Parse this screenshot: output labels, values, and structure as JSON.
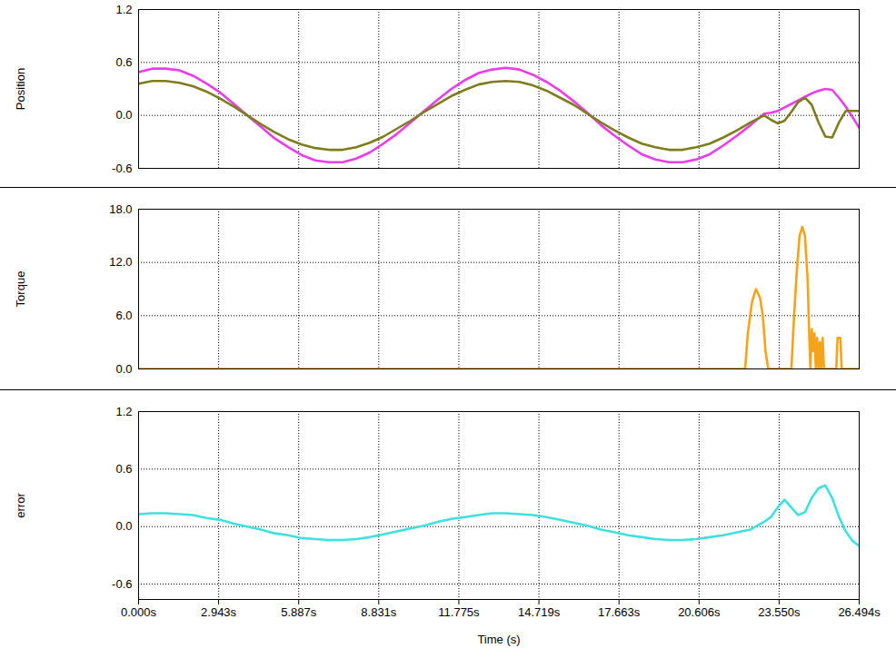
{
  "chart_data": [
    {
      "type": "line",
      "ylabel": "Position",
      "grid": true,
      "tick_labels": "y",
      "x": [
        0,
        0.5,
        1,
        1.5,
        2,
        2.5,
        3,
        3.5,
        4,
        4.5,
        5,
        5.5,
        6,
        6.5,
        7,
        7.5,
        8,
        8.5,
        9,
        9.5,
        10,
        10.5,
        11,
        11.5,
        12,
        12.5,
        13,
        13.5,
        14,
        14.5,
        15,
        15.5,
        16,
        16.5,
        17,
        17.5,
        18,
        18.5,
        19,
        19.5,
        20,
        20.5,
        21,
        21.5,
        22,
        22.5,
        23,
        23.25,
        23.5,
        23.75,
        24,
        24.25,
        24.5,
        24.75,
        25,
        25.25,
        25.5,
        25.75,
        26,
        26.25,
        26.494
      ],
      "series": [
        {
          "color": "#e83de8",
          "values": [
            0.49,
            0.53,
            0.53,
            0.51,
            0.45,
            0.36,
            0.26,
            0.13,
            0.0,
            -0.13,
            -0.26,
            -0.36,
            -0.45,
            -0.51,
            -0.53,
            -0.53,
            -0.49,
            -0.42,
            -0.32,
            -0.21,
            -0.08,
            0.05,
            0.18,
            0.3,
            0.4,
            0.48,
            0.52,
            0.54,
            0.52,
            0.46,
            0.38,
            0.28,
            0.16,
            0.03,
            -0.11,
            -0.23,
            -0.34,
            -0.44,
            -0.5,
            -0.53,
            -0.53,
            -0.5,
            -0.44,
            -0.34,
            -0.23,
            -0.11,
            0.02,
            0.03,
            0.05,
            0.09,
            0.13,
            0.17,
            0.21,
            0.25,
            0.28,
            0.3,
            0.29,
            0.2,
            0.1,
            -0.02,
            -0.14
          ]
        },
        {
          "color": "#7d7d1e",
          "values": [
            0.36,
            0.39,
            0.39,
            0.37,
            0.33,
            0.27,
            0.19,
            0.1,
            0.0,
            -0.1,
            -0.19,
            -0.27,
            -0.33,
            -0.37,
            -0.39,
            -0.39,
            -0.36,
            -0.31,
            -0.24,
            -0.15,
            -0.06,
            0.04,
            0.13,
            0.22,
            0.29,
            0.35,
            0.38,
            0.39,
            0.38,
            0.34,
            0.28,
            0.2,
            0.12,
            0.02,
            -0.08,
            -0.17,
            -0.25,
            -0.32,
            -0.36,
            -0.39,
            -0.39,
            -0.36,
            -0.32,
            -0.25,
            -0.17,
            -0.08,
            0.0,
            -0.05,
            -0.09,
            -0.06,
            0.04,
            0.15,
            0.2,
            0.12,
            -0.08,
            -0.24,
            -0.25,
            -0.08,
            0.05,
            0.05,
            0.05
          ]
        }
      ],
      "xlim": [
        0,
        26.494
      ],
      "xticks": [
        {
          "value": 0,
          "label": "0.000s"
        },
        {
          "value": 2.943,
          "label": "2.943s"
        },
        {
          "value": 5.887,
          "label": "5.887s"
        },
        {
          "value": 8.831,
          "label": "8.831s"
        },
        {
          "value": 11.775,
          "label": "11.775s"
        },
        {
          "value": 14.719,
          "label": "14.719s"
        },
        {
          "value": 17.663,
          "label": "17.663s"
        },
        {
          "value": 20.606,
          "label": "20.606s"
        },
        {
          "value": 23.55,
          "label": "23.550s"
        },
        {
          "value": 26.494,
          "label": "26.494s"
        }
      ],
      "ylim": [
        -0.6,
        1.2
      ],
      "yticks": [
        -0.6,
        {
          "value": 0,
          "label": "0.0"
        },
        0.6,
        1.2
      ]
    },
    {
      "type": "line",
      "ylabel": "Torque",
      "grid": true,
      "tick_labels": "y",
      "x": [
        0,
        22.3,
        22.4,
        22.55,
        22.7,
        22.85,
        22.95,
        23.05,
        23.15,
        24.0,
        24.1,
        24.2,
        24.3,
        24.4,
        24.5,
        24.6,
        24.65,
        24.7,
        24.75,
        24.8,
        24.85,
        24.9,
        24.95,
        25.0,
        25.05,
        25.1,
        25.15,
        25.2,
        25.25,
        25.65,
        25.7,
        25.8,
        25.85,
        26.494
      ],
      "series": [
        {
          "color": "#f5a31a",
          "values": [
            0,
            0,
            4,
            7.5,
            9,
            8,
            6,
            2,
            0,
            0,
            6,
            11,
            15,
            16,
            15,
            10,
            4.5,
            0,
            4.5,
            2,
            4,
            0,
            3.5,
            0,
            3,
            0,
            3.5,
            0,
            0,
            0,
            3.5,
            3.5,
            0,
            0
          ]
        }
      ],
      "xlim": [
        0,
        26.494
      ],
      "xticks": [
        {
          "value": 0,
          "label": "0.000s"
        },
        {
          "value": 2.943,
          "label": "2.943s"
        },
        {
          "value": 5.887,
          "label": "5.887s"
        },
        {
          "value": 8.831,
          "label": "8.831s"
        },
        {
          "value": 11.775,
          "label": "11.775s"
        },
        {
          "value": 14.719,
          "label": "14.719s"
        },
        {
          "value": 17.663,
          "label": "17.663s"
        },
        {
          "value": 20.606,
          "label": "20.606s"
        },
        {
          "value": 23.55,
          "label": "23.550s"
        },
        {
          "value": 26.494,
          "label": "26.494s"
        }
      ],
      "ylim": [
        0,
        18
      ],
      "yticks": [
        {
          "value": 0,
          "label": "0.0"
        },
        {
          "value": 6,
          "label": "6.0"
        },
        {
          "value": 12,
          "label": "12.0"
        },
        {
          "value": 18,
          "label": "18.0"
        }
      ]
    },
    {
      "type": "line",
      "ylabel": "error",
      "xlabel": "Time (s)",
      "grid": true,
      "x": [
        0,
        0.5,
        1,
        1.5,
        2,
        2.5,
        3,
        3.5,
        4,
        4.5,
        5,
        5.5,
        6,
        6.5,
        7,
        7.5,
        8,
        8.5,
        9,
        9.5,
        10,
        10.5,
        11,
        11.5,
        12,
        12.5,
        13,
        13.5,
        14,
        14.5,
        15,
        15.5,
        16,
        16.5,
        17,
        17.5,
        18,
        18.5,
        19,
        19.5,
        20,
        20.5,
        21,
        21.5,
        22,
        22.5,
        23,
        23.25,
        23.5,
        23.75,
        24,
        24.25,
        24.5,
        24.75,
        25,
        25.25,
        25.5,
        25.75,
        26,
        26.25,
        26.494
      ],
      "series": [
        {
          "color": "#3fe0e0",
          "values": [
            0.13,
            0.14,
            0.14,
            0.13,
            0.12,
            0.09,
            0.07,
            0.03,
            0,
            -0.03,
            -0.07,
            -0.09,
            -0.12,
            -0.13,
            -0.14,
            -0.14,
            -0.13,
            -0.11,
            -0.08,
            -0.05,
            -0.02,
            0.01,
            0.05,
            0.08,
            0.1,
            0.12,
            0.14,
            0.14,
            0.13,
            0.12,
            0.1,
            0.07,
            0.04,
            0.01,
            -0.03,
            -0.06,
            -0.09,
            -0.11,
            -0.13,
            -0.14,
            -0.14,
            -0.13,
            -0.11,
            -0.09,
            -0.06,
            -0.03,
            0.05,
            0.1,
            0.2,
            0.28,
            0.2,
            0.12,
            0.15,
            0.3,
            0.4,
            0.43,
            0.3,
            0.1,
            -0.05,
            -0.15,
            -0.2
          ]
        }
      ],
      "xlim": [
        0,
        26.494
      ],
      "xticks": [
        {
          "value": 0,
          "label": "0.000s"
        },
        {
          "value": 2.943,
          "label": "2.943s"
        },
        {
          "value": 5.887,
          "label": "5.887s"
        },
        {
          "value": 8.831,
          "label": "8.831s"
        },
        {
          "value": 11.775,
          "label": "11.775s"
        },
        {
          "value": 14.719,
          "label": "14.719s"
        },
        {
          "value": 17.663,
          "label": "17.663s"
        },
        {
          "value": 20.606,
          "label": "20.606s"
        },
        {
          "value": 23.55,
          "label": "23.550s"
        },
        {
          "value": 26.494,
          "label": "26.494s"
        }
      ],
      "ylim": [
        -0.76,
        1.2
      ],
      "yticks": [
        -0.6,
        {
          "value": 0,
          "label": "0.0"
        },
        0.6,
        1.2
      ]
    }
  ]
}
